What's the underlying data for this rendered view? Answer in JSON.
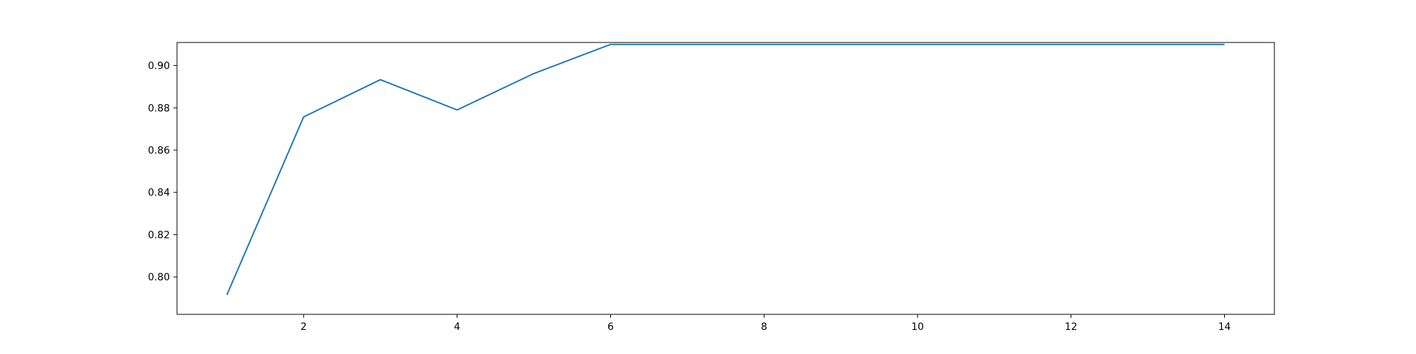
{
  "chart_data": {
    "type": "line",
    "title": "",
    "xlabel": "",
    "ylabel": "",
    "x": [
      1,
      2,
      3,
      4,
      5,
      6,
      7,
      8,
      9,
      10,
      11,
      12,
      13,
      14
    ],
    "series": [
      {
        "values": [
          0.7915,
          0.8757,
          0.8933,
          0.879,
          0.8962,
          0.91,
          0.91,
          0.91,
          0.91,
          0.91,
          0.91,
          0.91,
          0.91,
          0.91
        ],
        "color": "#1f77b4"
      }
    ],
    "xlim": [
      0.35,
      14.65
    ],
    "ylim": [
      0.7823,
      0.9109
    ],
    "xticks": [
      2,
      4,
      6,
      8,
      10,
      12,
      14
    ],
    "xtick_labels": [
      "2",
      "4",
      "6",
      "8",
      "10",
      "12",
      "14"
    ],
    "yticks": [
      0.8,
      0.82,
      0.84,
      0.86,
      0.88,
      0.9
    ],
    "ytick_labels": [
      "0.80",
      "0.82",
      "0.84",
      "0.86",
      "0.88",
      "0.90"
    ],
    "grid": false,
    "legend": "none"
  }
}
